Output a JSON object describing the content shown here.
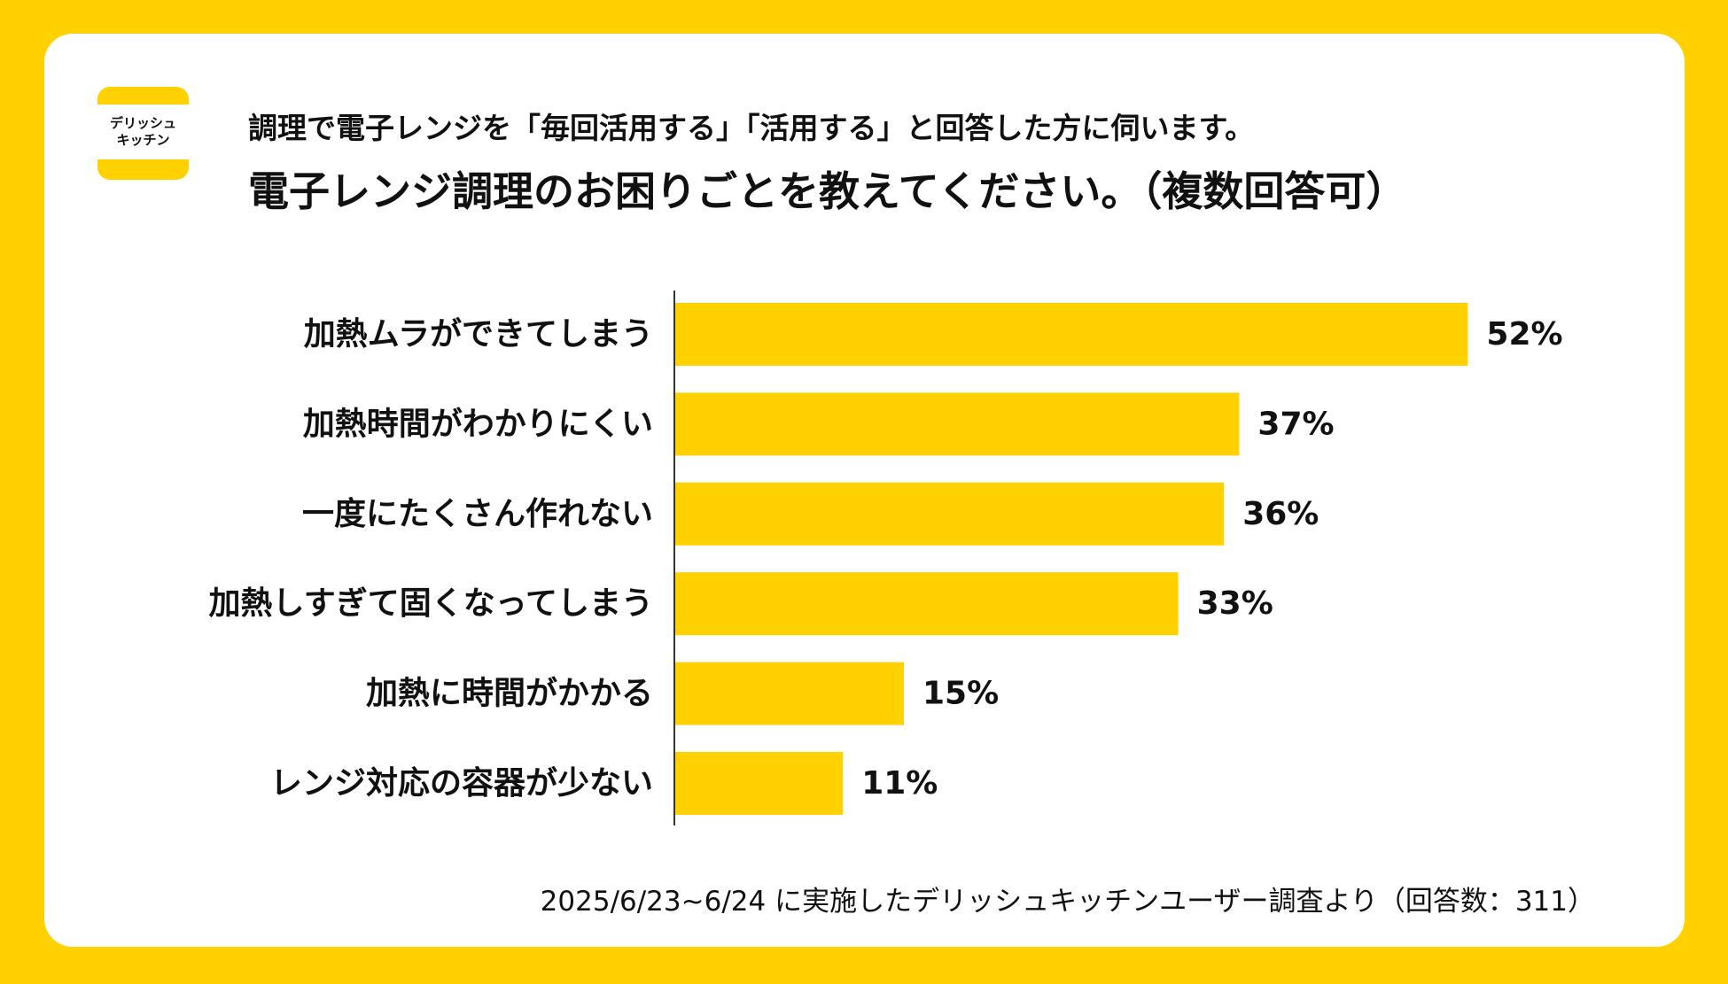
{
  "logo": {
    "line1": "デリッシュ",
    "line2": "キッチン"
  },
  "header": {
    "subtitle": "調理で電子レンジを「毎回活用する」「活用する」と回答した方に伺います。",
    "title": "電子レンジ調理のお困りごとを教えてください。（複数回答可）"
  },
  "chart_data": {
    "type": "bar",
    "orientation": "horizontal",
    "title": "電子レンジ調理のお困りごとを教えてください。（複数回答可）",
    "categories": [
      "加熱ムラができてしまう",
      "加熱時間がわかりにくい",
      "一度にたくさん作れない",
      "加熱しすぎて固くなってしまう",
      "加熱に時間がかかる",
      "レンジ対応の容器が少ない"
    ],
    "values": [
      52,
      37,
      36,
      33,
      15,
      11
    ],
    "value_suffix": "%",
    "xlim": [
      0,
      100
    ],
    "grid": false,
    "bar_color": "#FFD100"
  },
  "footnote": "2025/6/23~6/24 に実施したデリッシュキッチンユーザー調査より（回答数：311）"
}
